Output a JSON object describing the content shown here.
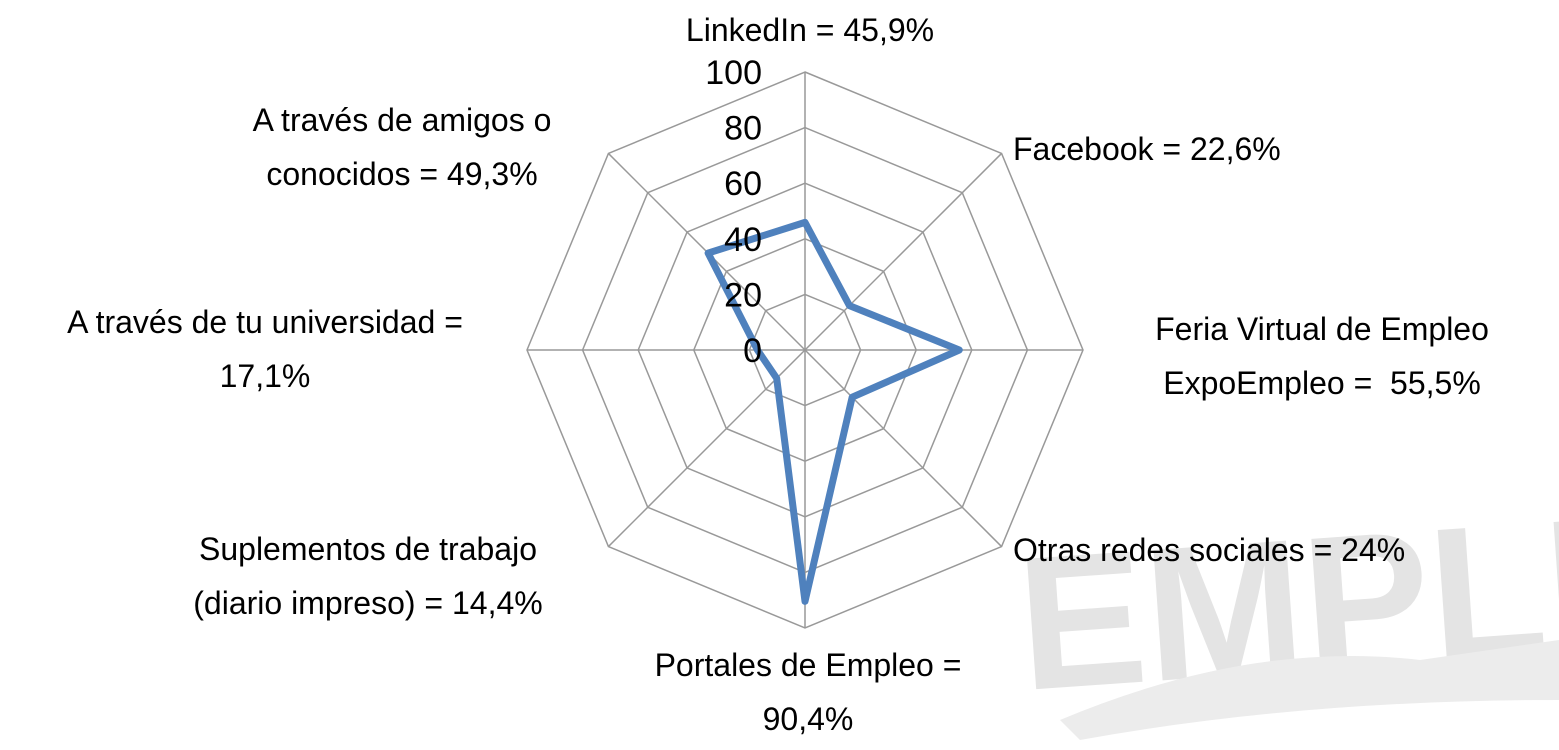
{
  "chart_data": {
    "type": "radar",
    "categories": [
      "LinkedIn = 45,9%",
      "Facebook = 22,6%",
      "Feria Virtual de Empleo ExpoEmpleo =  55,5%",
      "Otras redes sociales = 24%",
      "Portales de Empleo = 90,4%",
      "Suplementos de trabajo (diario impreso) = 14,4%",
      "A través de tu universidad = 17,1%",
      "A través de amigos o conocidos = 49,3%"
    ],
    "values": [
      45.9,
      22.6,
      55.5,
      24,
      90.4,
      14.4,
      17.1,
      49.3
    ],
    "color": "#4f81bd",
    "ylim": [
      0,
      100
    ],
    "yticks": [
      0,
      20,
      40,
      60,
      80,
      100
    ],
    "grid": true,
    "watermark": "EMPLE"
  }
}
